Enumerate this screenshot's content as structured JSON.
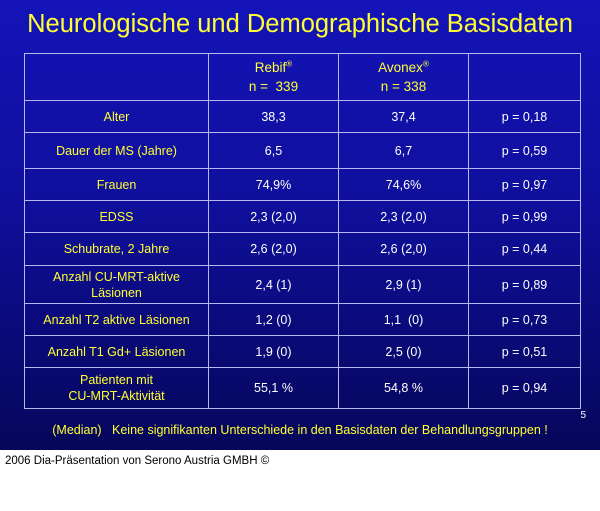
{
  "title": "Neurologische und Demographische Basisdaten",
  "header": {
    "col1": "",
    "rebif_name": "Rebif",
    "rebif_mark": "®",
    "rebif_n": "n =  339",
    "avonex_name": "Avonex",
    "avonex_mark": "®",
    "avonex_n": "n = 338",
    "col4": ""
  },
  "rows": [
    {
      "label": "Alter",
      "rebif": "38,3",
      "avonex": "37,4",
      "p": "p = 0,18"
    },
    {
      "label": "Dauer der MS (Jahre)",
      "rebif": "6,5",
      "avonex": "6,7",
      "p": "p = 0,59"
    },
    {
      "label": "Frauen",
      "rebif": "74,9%",
      "avonex": "74,6%",
      "p": "p = 0,97"
    },
    {
      "label": "EDSS",
      "rebif": "2,3 (2,0)",
      "avonex": "2,3 (2,0)",
      "p": "p = 0,99"
    },
    {
      "label": "Schubrate, 2 Jahre",
      "rebif": "2,6 (2,0)",
      "avonex": "2,6 (2,0)",
      "p": "p = 0,44"
    },
    {
      "label_line1": "Anzahl CU-MRT-aktive",
      "label_line2": "Läsionen",
      "rebif": "2,4 (1)",
      "avonex": "2,9 (1)",
      "p": "p = 0,89"
    },
    {
      "label": "Anzahl T2 aktive Läsionen",
      "rebif": "1,2 (0)",
      "avonex": "1,1  (0)",
      "p": "p = 0,73"
    },
    {
      "label": "Anzahl T1 Gd+ Läsionen",
      "rebif": "1,9 (0)",
      "avonex": "2,5 (0)",
      "p": "p = 0,51"
    },
    {
      "label_line1": "Patienten mit",
      "label_line2": "CU-MRT-Aktivität",
      "rebif": "55,1 %",
      "avonex": "54,8 %",
      "p": "p = 0,94"
    }
  ],
  "footnote": "(Median)   Keine signifikanten Unterschiede in den Basisdaten der Behandlungsgruppen !",
  "page_number": "5",
  "copyright": "2006 Dia-Präsentation von Serono Austria GMBH ©",
  "colors": {
    "background": "#1010a8",
    "label_text": "#ffff33",
    "value_text": "#ffffff",
    "grid": "#b8b8f0"
  }
}
